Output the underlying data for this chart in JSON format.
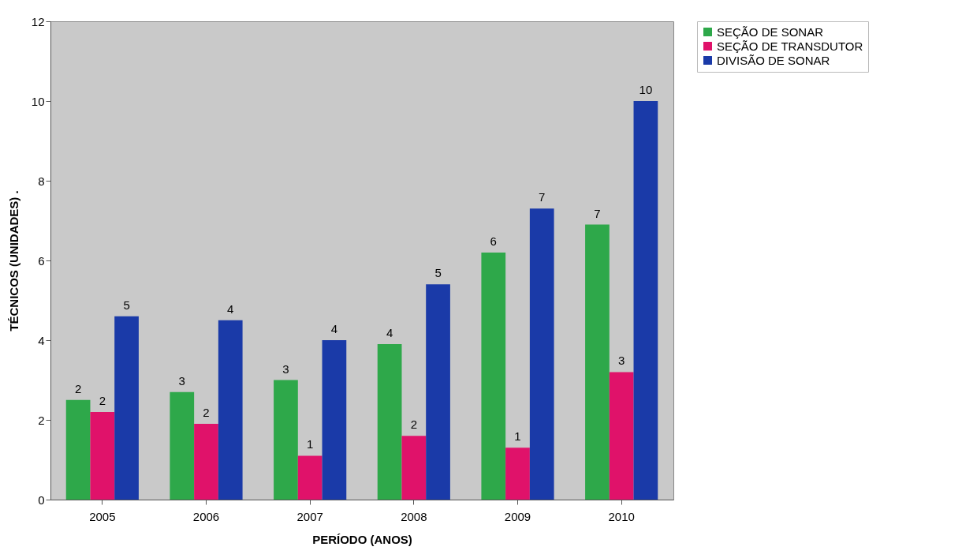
{
  "chart_data": {
    "type": "bar",
    "xlabel": "PERÍODO (ANOS)",
    "ylabel": "TÉCNICOS (UNIDADES)  .",
    "categories": [
      "2005",
      "2006",
      "2007",
      "2008",
      "2009",
      "2010"
    ],
    "series": [
      {
        "name": "SEÇÃO DE SONAR",
        "color": "#2ea84a",
        "values": [
          2.5,
          2.7,
          3.0,
          3.9,
          6.2,
          6.9
        ],
        "value_labels": [
          "2",
          "3",
          "3",
          "4",
          "6",
          "7"
        ]
      },
      {
        "name": "SEÇÃO DE TRANSDUTOR",
        "color": "#e0126a",
        "values": [
          2.2,
          1.9,
          1.1,
          1.6,
          1.3,
          3.2
        ],
        "value_labels": [
          "2",
          "2",
          "1",
          "2",
          "1",
          "3"
        ]
      },
      {
        "name": "DIVISÃO DE SONAR",
        "color": "#1a3aa8",
        "values": [
          4.6,
          4.5,
          4.0,
          5.4,
          7.3,
          10.0
        ],
        "value_labels": [
          "5",
          "4",
          "4",
          "5",
          "7",
          "10"
        ]
      }
    ],
    "ylim": [
      0,
      12
    ],
    "yticks": [
      0,
      2,
      4,
      6,
      8,
      10,
      12
    ],
    "grid": false,
    "legend": "right"
  }
}
